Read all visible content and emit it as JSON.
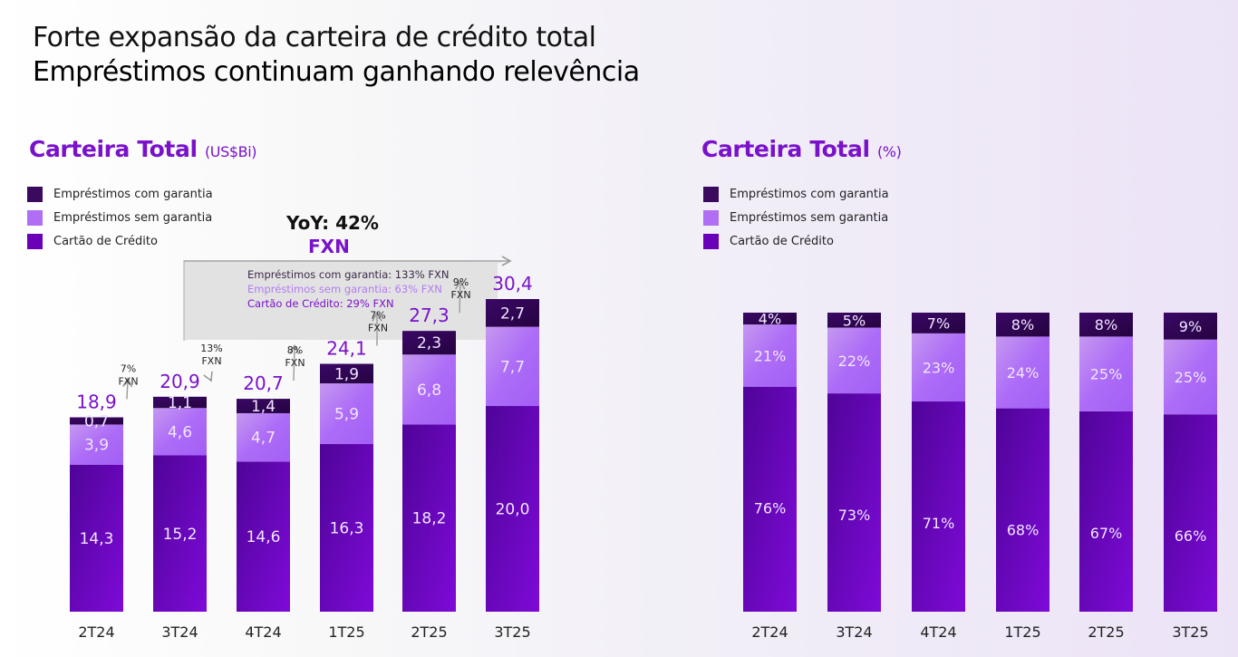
{
  "header": {
    "title_line1": "Forte expansão da carteira de crédito total",
    "title_line2": "Empréstimos continuam ganhando relevência"
  },
  "colors": {
    "emprestimos_com_garantia": "#3a0a5e",
    "emprestimos_sem_garantia": "#b06ef5",
    "cartao_de_credito": "#6a00b8",
    "accent": "#7a12c9"
  },
  "left_panel": {
    "title": "Carteira Total",
    "unit": "(US$Bi)",
    "legend": [
      "Empréstimos com garantia",
      "Empréstimos sem garantia",
      "Cartão de Crédito"
    ],
    "yoy_label": "YoY: 42%",
    "yoy_unit": "FXN",
    "yoy_breakdown": [
      "Empréstimos com garantia: 133% FXN",
      "Empréstimos sem garantia: 63% FXN",
      "Cartão de Crédito: 29% FXN"
    ]
  },
  "right_panel": {
    "title": "Carteira Total",
    "unit": "(%)",
    "legend": [
      "Empréstimos com garantia",
      "Empréstimos sem garantia",
      "Cartão de Crédito"
    ]
  },
  "chart_data": [
    {
      "type": "bar",
      "stacked": true,
      "title": "Carteira Total (US$Bi)",
      "xlabel": "",
      "ylabel": "",
      "categories": [
        "2T24",
        "3T24",
        "4T24",
        "1T25",
        "2T25",
        "3T25"
      ],
      "series": [
        {
          "name": "Cartão de Crédito",
          "values": [
            14.3,
            15.2,
            14.6,
            16.3,
            18.2,
            20.0
          ],
          "labels": [
            "14,3",
            "15,2",
            "14,6",
            "16,3",
            "18,2",
            "20,0"
          ]
        },
        {
          "name": "Empréstimos sem garantia",
          "values": [
            3.9,
            4.6,
            4.7,
            5.9,
            6.8,
            7.7
          ],
          "labels": [
            "3,9",
            "4,6",
            "4,7",
            "5,9",
            "6,8",
            "7,7"
          ]
        },
        {
          "name": "Empréstimos com garantia",
          "values": [
            0.7,
            1.1,
            1.4,
            1.9,
            2.3,
            2.7
          ],
          "labels": [
            "0,7",
            "1,1",
            "1,4",
            "1,9",
            "2,3",
            "2,7"
          ]
        }
      ],
      "totals": [
        18.9,
        20.9,
        20.7,
        24.1,
        27.3,
        30.4
      ],
      "total_labels": [
        "18,9",
        "20,9",
        "20,7",
        "24,1",
        "27,3",
        "30,4"
      ],
      "growth_annotations": [
        {
          "pct": "7%",
          "unit": "FXN"
        },
        {
          "pct": "13%",
          "unit": "FXN"
        },
        {
          "pct": "8%",
          "unit": "FXN"
        },
        {
          "pct": "7%",
          "unit": "FXN"
        },
        {
          "pct": "9%",
          "unit": "FXN"
        }
      ],
      "ylim": [
        0,
        32
      ],
      "grid": false,
      "legend_position": "top-left"
    },
    {
      "type": "bar",
      "stacked": true,
      "title": "Carteira Total (%)",
      "xlabel": "",
      "ylabel": "",
      "categories": [
        "2T24",
        "3T24",
        "4T24",
        "1T25",
        "2T25",
        "3T25"
      ],
      "series": [
        {
          "name": "Cartão de Crédito",
          "values": [
            76,
            73,
            71,
            68,
            67,
            66
          ],
          "labels": [
            "76%",
            "73%",
            "71%",
            "68%",
            "67%",
            "66%"
          ]
        },
        {
          "name": "Empréstimos sem garantia",
          "values": [
            21,
            22,
            23,
            24,
            25,
            25
          ],
          "labels": [
            "21%",
            "22%",
            "23%",
            "24%",
            "25%",
            "25%"
          ]
        },
        {
          "name": "Empréstimos com garantia",
          "values": [
            4,
            5,
            7,
            8,
            8,
            9
          ],
          "labels": [
            "4%",
            "5%",
            "7%",
            "8%",
            "8%",
            "9%"
          ]
        }
      ],
      "ylim": [
        0,
        100
      ],
      "grid": false,
      "legend_position": "top-left"
    }
  ]
}
